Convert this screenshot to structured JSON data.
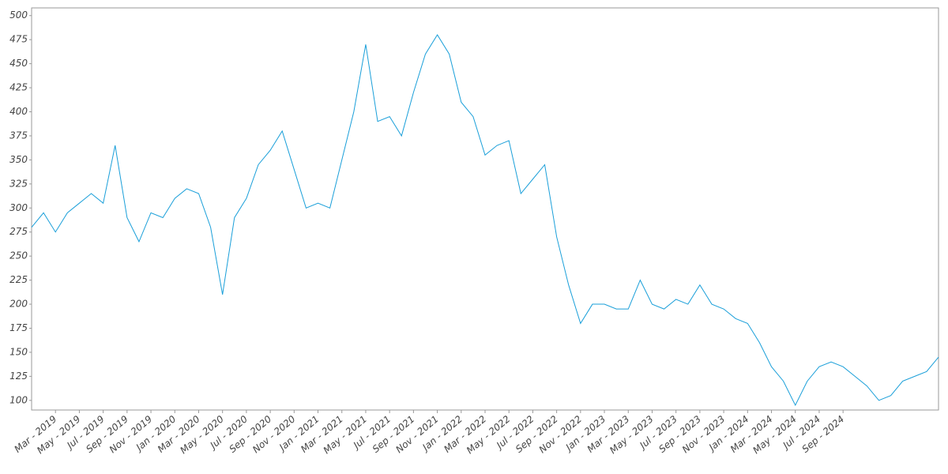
{
  "chart_data": {
    "type": "line",
    "x": [
      "2019-01",
      "2019-02",
      "2019-03",
      "2019-04",
      "2019-05",
      "2019-06",
      "2019-07",
      "2019-08",
      "2019-09",
      "2019-10",
      "2019-11",
      "2019-12",
      "2020-01",
      "2020-02",
      "2020-03",
      "2020-04",
      "2020-05",
      "2020-06",
      "2020-07",
      "2020-08",
      "2020-09",
      "2020-10",
      "2020-11",
      "2020-12",
      "2021-01",
      "2021-02",
      "2021-03",
      "2021-04",
      "2021-05",
      "2021-06",
      "2021-07",
      "2021-08",
      "2021-09",
      "2021-10",
      "2021-11",
      "2021-12",
      "2022-01",
      "2022-02",
      "2022-03",
      "2022-04",
      "2022-05",
      "2022-06",
      "2022-07",
      "2022-08",
      "2022-09",
      "2022-10",
      "2022-11",
      "2022-12",
      "2023-01",
      "2023-02",
      "2023-03",
      "2023-04",
      "2023-05",
      "2023-06",
      "2023-07",
      "2023-08",
      "2023-09",
      "2023-10",
      "2023-11",
      "2023-12",
      "2024-01",
      "2024-02",
      "2024-03",
      "2024-04",
      "2024-05",
      "2024-06",
      "2024-07",
      "2024-08",
      "2024-09",
      "2024-10",
      "2024-11",
      "2024-12",
      "2025-01",
      "2025-02",
      "2025-03",
      "2025-04",
      "2025-05"
    ],
    "series": [
      {
        "color": "#1a9fd9",
        "values": [
          280,
          295,
          275,
          295,
          305,
          315,
          305,
          365,
          290,
          265,
          295,
          290,
          310,
          320,
          315,
          280,
          210,
          290,
          310,
          345,
          360,
          380,
          340,
          300,
          305,
          300,
          350,
          400,
          470,
          390,
          395,
          375,
          420,
          460,
          480,
          460,
          410,
          395,
          355,
          365,
          370,
          315,
          330,
          345,
          270,
          220,
          180,
          200,
          200,
          195,
          195,
          225,
          200,
          195,
          205,
          200,
          220,
          200,
          195,
          185,
          180,
          160,
          135,
          120,
          95,
          120,
          135,
          140,
          135,
          125,
          115,
          100,
          105,
          120,
          125,
          130,
          145
        ]
      }
    ],
    "xlim": [
      "2019-01",
      "2025-05"
    ],
    "xticks": [
      {
        "value": "2019-03",
        "label": "Mar - 2019"
      },
      {
        "value": "2019-05",
        "label": "May - 2019"
      },
      {
        "value": "2019-07",
        "label": "Jul - 2019"
      },
      {
        "value": "2019-09",
        "label": "Sep - 2019"
      },
      {
        "value": "2019-11",
        "label": "Nov - 2019"
      },
      {
        "value": "2020-01",
        "label": "Jan - 2020"
      },
      {
        "value": "2020-03",
        "label": "Mar - 2020"
      },
      {
        "value": "2020-05",
        "label": "May - 2020"
      },
      {
        "value": "2020-07",
        "label": "Jul - 2020"
      },
      {
        "value": "2020-09",
        "label": "Sep - 2020"
      },
      {
        "value": "2020-11",
        "label": "Nov - 2020"
      },
      {
        "value": "2021-01",
        "label": "Jan - 2021"
      },
      {
        "value": "2021-03",
        "label": "Mar - 2021"
      },
      {
        "value": "2021-05",
        "label": "May - 2021"
      },
      {
        "value": "2021-07",
        "label": "Jul - 2021"
      },
      {
        "value": "2021-09",
        "label": "Sep - 2021"
      },
      {
        "value": "2021-11",
        "label": "Nov - 2021"
      },
      {
        "value": "2022-01",
        "label": "Jan - 2022"
      },
      {
        "value": "2022-03",
        "label": "Mar - 2022"
      },
      {
        "value": "2022-05",
        "label": "May - 2022"
      },
      {
        "value": "2022-07",
        "label": "Jul - 2022"
      },
      {
        "value": "2022-09",
        "label": "Sep - 2022"
      },
      {
        "value": "2022-11",
        "label": "Nov - 2022"
      },
      {
        "value": "2023-01",
        "label": "Jan - 2023"
      },
      {
        "value": "2023-03",
        "label": "Mar - 2023"
      },
      {
        "value": "2023-05",
        "label": "May - 2023"
      },
      {
        "value": "2023-07",
        "label": "Jul - 2023"
      },
      {
        "value": "2023-09",
        "label": "Sep - 2023"
      },
      {
        "value": "2023-11",
        "label": "Nov - 2023"
      },
      {
        "value": "2024-01",
        "label": "Jan - 2024"
      },
      {
        "value": "2024-03",
        "label": "Mar - 2024"
      },
      {
        "value": "2024-05",
        "label": "May - 2024"
      },
      {
        "value": "2024-07",
        "label": "Jul - 2024"
      },
      {
        "value": "2024-09",
        "label": "Sep - 2024"
      }
    ],
    "ylim": [
      90,
      508
    ],
    "yticks": [
      100,
      125,
      150,
      175,
      200,
      225,
      250,
      275,
      300,
      325,
      350,
      375,
      400,
      425,
      450,
      475,
      500
    ],
    "grid": false
  }
}
